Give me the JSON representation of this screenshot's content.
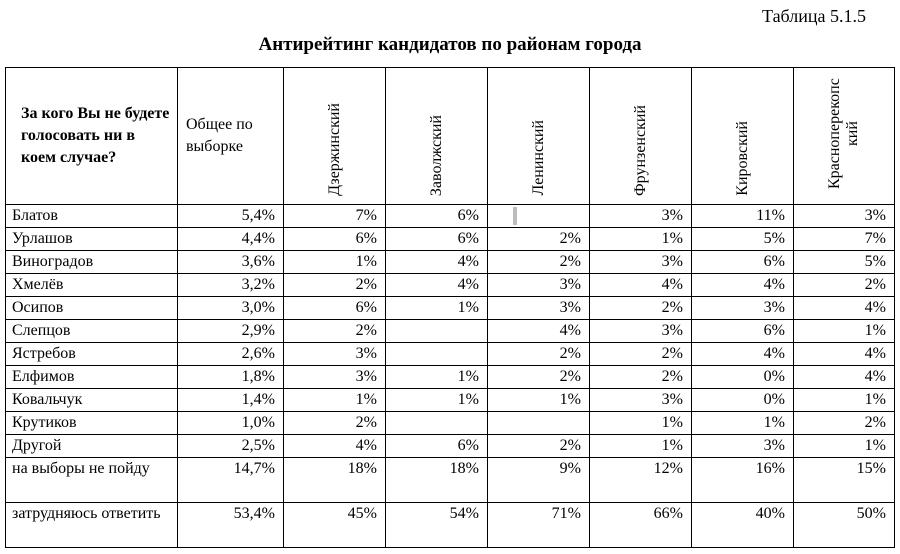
{
  "table_label": "Таблица 5.1.5",
  "title": "Антирейтинг кандидатов по районам города",
  "header": {
    "question": "За кого Вы не будете голосовать ни в коем случае?",
    "total": "Общее по выборке",
    "districts": [
      "Дзержинский",
      "Заволжский",
      "Ленинский",
      "Фрунзенский",
      "Кировский",
      "Красноперекопс кий"
    ]
  },
  "rows": [
    {
      "name": "Блатов",
      "values": [
        "5,4%",
        "7%",
        "6%",
        "",
        "3%",
        "11%",
        "3%"
      ]
    },
    {
      "name": "Урлашов",
      "values": [
        "4,4%",
        "6%",
        "6%",
        "2%",
        "1%",
        "5%",
        "7%"
      ]
    },
    {
      "name": "Виноградов",
      "values": [
        "3,6%",
        "1%",
        "4%",
        "2%",
        "3%",
        "6%",
        "5%"
      ]
    },
    {
      "name": "Хмелёв",
      "values": [
        "3,2%",
        "2%",
        "4%",
        "3%",
        "4%",
        "4%",
        "2%"
      ]
    },
    {
      "name": "Осипов",
      "values": [
        "3,0%",
        "6%",
        "1%",
        "3%",
        "2%",
        "3%",
        "4%"
      ]
    },
    {
      "name": "Слепцов",
      "values": [
        "2,9%",
        "2%",
        "",
        "4%",
        "3%",
        "6%",
        "1%"
      ]
    },
    {
      "name": "Ястребов",
      "values": [
        "2,6%",
        "3%",
        "",
        "2%",
        "2%",
        "4%",
        "4%"
      ]
    },
    {
      "name": "Елфимов",
      "values": [
        "1,8%",
        "3%",
        "1%",
        "2%",
        "2%",
        "0%",
        "4%"
      ]
    },
    {
      "name": "Ковальчук",
      "values": [
        "1,4%",
        "1%",
        "1%",
        "1%",
        "3%",
        "0%",
        "1%"
      ]
    },
    {
      "name": "Крутиков",
      "values": [
        "1,0%",
        "2%",
        "",
        "",
        "1%",
        "1%",
        "2%"
      ]
    },
    {
      "name": "Другой",
      "values": [
        "2,5%",
        "4%",
        "6%",
        "2%",
        "1%",
        "3%",
        "1%"
      ]
    },
    {
      "name": "на выборы не пойду",
      "values": [
        "14,7%",
        "18%",
        "18%",
        "9%",
        "12%",
        "16%",
        "15%"
      ]
    },
    {
      "name": "затрудняюсь ответить",
      "values": [
        "53,4%",
        "45%",
        "54%",
        "71%",
        "66%",
        "40%",
        "50%"
      ]
    }
  ]
}
